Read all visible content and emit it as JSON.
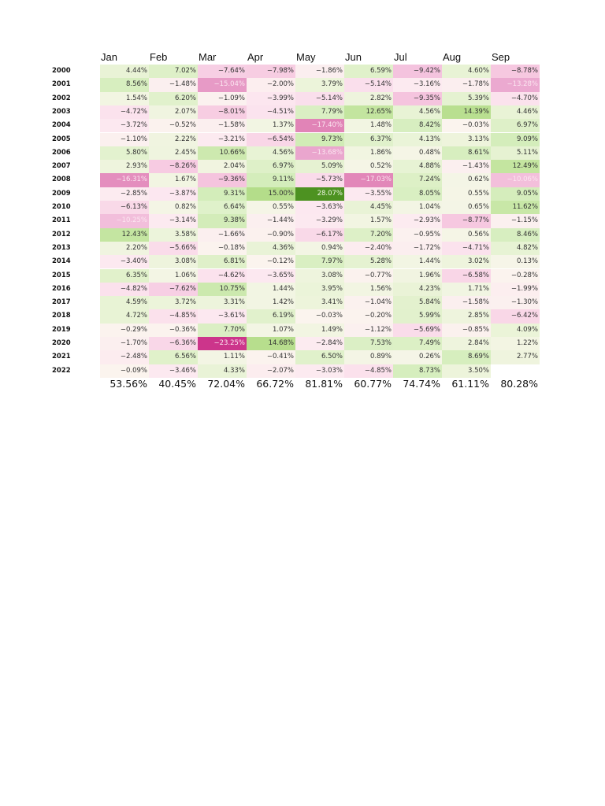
{
  "chart_data": {
    "type": "heatmap",
    "title": "",
    "xlabel": "",
    "ylabel": "",
    "columns": [
      "Jan",
      "Feb",
      "Mar",
      "Apr",
      "May",
      "Jun",
      "Jul",
      "Aug",
      "Sep"
    ],
    "rows": [
      "2000",
      "2001",
      "2002",
      "2003",
      "2004",
      "2005",
      "2006",
      "2007",
      "2008",
      "2009",
      "2010",
      "2011",
      "2012",
      "2013",
      "2014",
      "2015",
      "2016",
      "2017",
      "2018",
      "2019",
      "2020",
      "2021",
      "2022"
    ],
    "values": [
      [
        4.44,
        7.02,
        -7.64,
        -7.98,
        -1.86,
        6.59,
        -9.42,
        4.6,
        -8.78
      ],
      [
        8.56,
        -1.48,
        -15.04,
        -2.0,
        3.79,
        -5.14,
        -3.16,
        -1.78,
        -13.28
      ],
      [
        1.54,
        6.2,
        -1.09,
        -3.99,
        -5.14,
        2.82,
        -9.35,
        5.39,
        -4.7
      ],
      [
        -4.72,
        2.07,
        -8.01,
        -4.51,
        7.79,
        12.65,
        4.56,
        14.39,
        4.46
      ],
      [
        -3.72,
        -0.52,
        -1.58,
        1.37,
        -17.4,
        1.48,
        8.42,
        -0.03,
        6.97
      ],
      [
        -1.1,
        2.22,
        -3.21,
        -6.54,
        9.73,
        6.37,
        4.13,
        3.13,
        9.09
      ],
      [
        5.8,
        2.45,
        10.66,
        4.56,
        -13.68,
        1.86,
        0.48,
        8.61,
        5.11
      ],
      [
        2.93,
        -8.26,
        2.04,
        6.97,
        5.09,
        0.52,
        4.88,
        -1.43,
        12.49
      ],
      [
        -16.31,
        1.67,
        -9.36,
        9.11,
        -5.73,
        -17.03,
        7.24,
        0.62,
        -10.06
      ],
      [
        -2.85,
        -3.87,
        9.31,
        15.0,
        28.07,
        -3.55,
        8.05,
        0.55,
        9.05
      ],
      [
        -6.13,
        0.82,
        6.64,
        0.55,
        -3.63,
        4.45,
        1.04,
        0.65,
        11.62
      ],
      [
        -10.25,
        -3.14,
        9.38,
        -1.44,
        -3.29,
        1.57,
        -2.93,
        -8.77,
        -1.15
      ],
      [
        12.43,
        3.58,
        -1.66,
        -0.9,
        -6.17,
        7.2,
        -0.95,
        0.56,
        8.46
      ],
      [
        2.2,
        -5.66,
        -0.18,
        4.36,
        0.94,
        -2.4,
        -1.72,
        -4.71,
        4.82
      ],
      [
        -3.4,
        3.08,
        6.81,
        -0.12,
        7.97,
        5.28,
        1.44,
        3.02,
        0.13
      ],
      [
        6.35,
        1.06,
        -4.62,
        -3.65,
        3.08,
        -0.77,
        1.96,
        -6.58,
        -0.28
      ],
      [
        -4.82,
        -7.62,
        10.75,
        1.44,
        3.95,
        1.56,
        4.23,
        1.71,
        -1.99
      ],
      [
        4.59,
        3.72,
        3.31,
        1.42,
        3.41,
        -1.04,
        5.84,
        -1.58,
        -1.3
      ],
      [
        4.72,
        -4.85,
        -3.61,
        6.19,
        -0.03,
        -0.2,
        5.99,
        2.85,
        -6.42
      ],
      [
        -0.29,
        -0.36,
        7.7,
        1.07,
        1.49,
        -1.12,
        -5.69,
        -0.85,
        4.09
      ],
      [
        -1.7,
        -6.36,
        -23.25,
        14.68,
        -2.84,
        7.53,
        7.49,
        2.84,
        1.22
      ],
      [
        -2.48,
        6.56,
        1.11,
        -0.41,
        6.5,
        0.89,
        0.26,
        8.69,
        2.77
      ],
      [
        -0.09,
        -3.46,
        4.33,
        -2.07,
        -3.03,
        -4.85,
        8.73,
        3.5,
        null
      ]
    ],
    "totals": [
      "53.56%",
      "40.45%",
      "72.04%",
      "66.72%",
      "81.81%",
      "60.77%",
      "74.74%",
      "61.11%",
      "80.28%"
    ],
    "colormap": "PiYG (diverging pink-to-green, centered at 0)",
    "value_format": "percent, 2 decimals",
    "legend": "none",
    "grid": false
  },
  "style": {
    "neg_strong": "#c51b7d",
    "neutral": "#f7f7f7",
    "pos_strong": "#4d9221"
  }
}
